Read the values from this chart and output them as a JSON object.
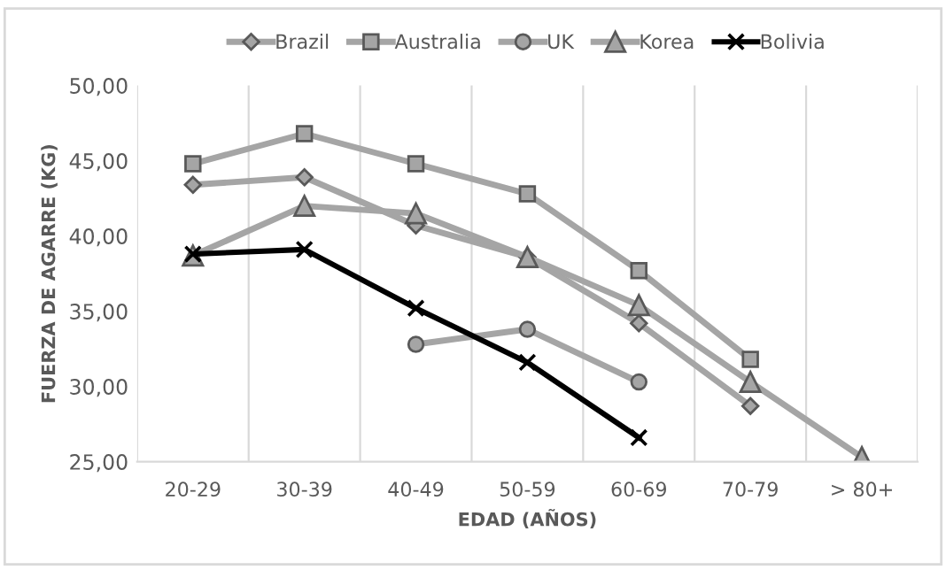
{
  "chart_data": {
    "type": "line",
    "xlabel": "EDAD (AÑOS)",
    "ylabel": "FUERZA DE AGARRE (KG)",
    "categories": [
      "20-29",
      "30-39",
      "40-49",
      "50-59",
      "60-69",
      "70-79",
      "> 80+"
    ],
    "ylim": [
      25,
      50
    ],
    "yticks": [
      {
        "value": 25,
        "label": "25,00"
      },
      {
        "value": 30,
        "label": "30,00"
      },
      {
        "value": 35,
        "label": "35,00"
      },
      {
        "value": 40,
        "label": "40,00"
      },
      {
        "value": 45,
        "label": "45,00"
      },
      {
        "value": 50,
        "label": "50,00"
      }
    ],
    "grid": "x",
    "legend": "top",
    "series": [
      {
        "name": "Brazil",
        "color": "#a5a5a5",
        "marker": "diamond",
        "values": [
          43.4,
          43.9,
          40.7,
          38.6,
          34.2,
          28.7,
          null
        ]
      },
      {
        "name": "Australia",
        "color": "#a5a5a5",
        "marker": "square",
        "values": [
          44.8,
          46.8,
          44.8,
          42.8,
          37.7,
          31.8,
          null
        ]
      },
      {
        "name": "UK",
        "color": "#a5a5a5",
        "marker": "circle",
        "values": [
          null,
          null,
          32.8,
          33.8,
          30.3,
          null,
          null
        ]
      },
      {
        "name": "Korea",
        "color": "#a5a5a5",
        "marker": "triangle",
        "values": [
          38.7,
          42.0,
          41.5,
          38.6,
          35.4,
          30.3,
          25.3
        ]
      },
      {
        "name": "Bolivia",
        "color": "#000000",
        "marker": "cross",
        "values": [
          38.8,
          39.1,
          35.2,
          31.6,
          26.6,
          null,
          null
        ]
      }
    ]
  }
}
